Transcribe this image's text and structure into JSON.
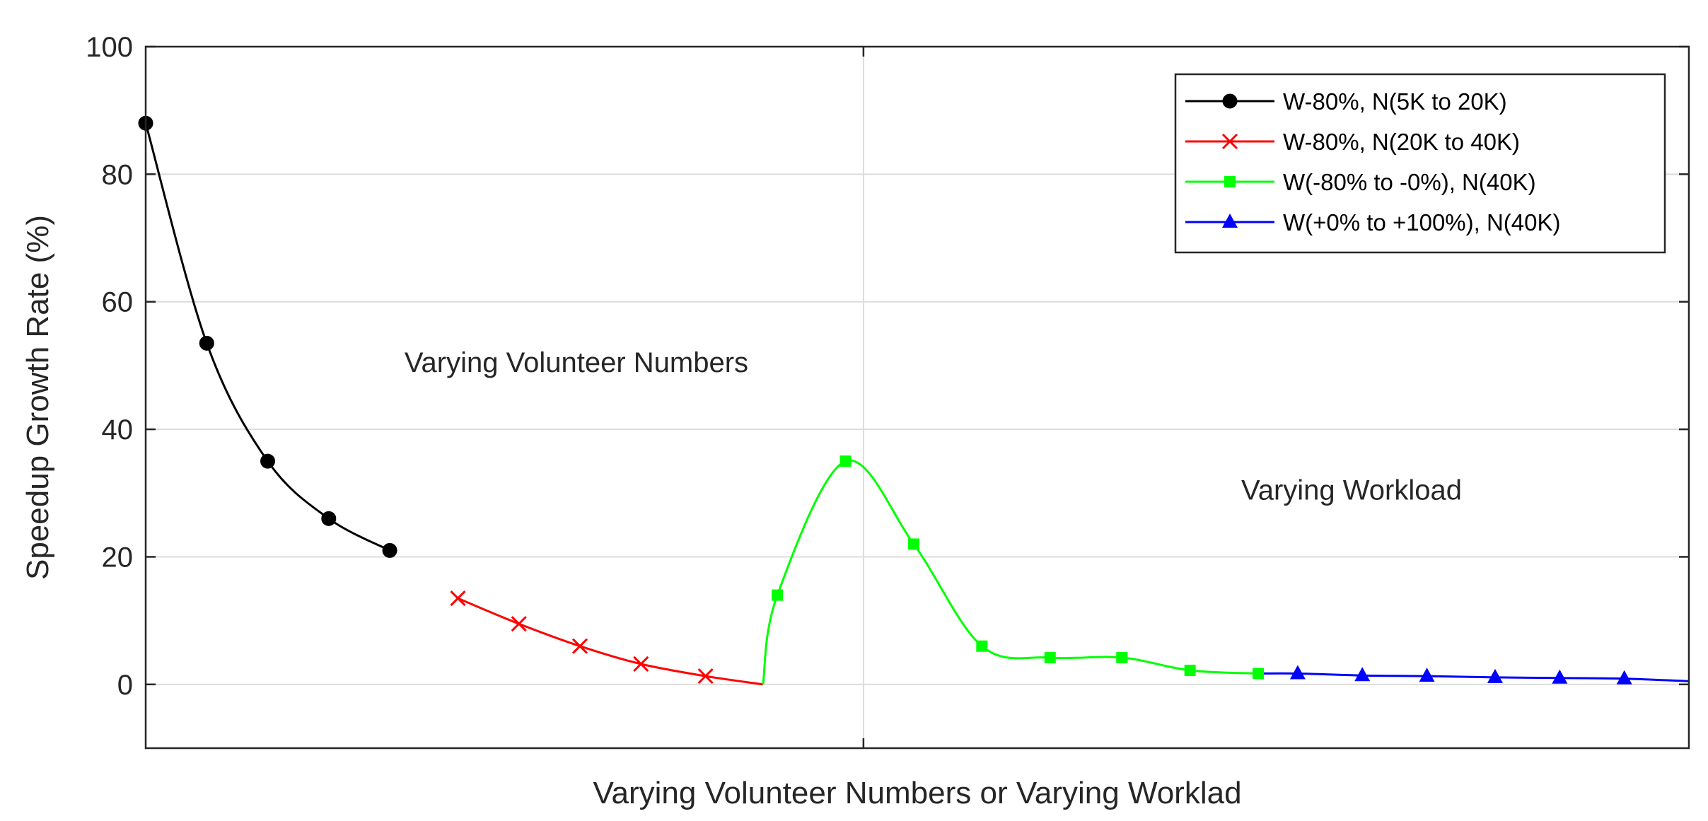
{
  "chart_data": {
    "type": "line",
    "title": "",
    "xlabel": "Varying Volunteer Numbers or Varying Worklad",
    "ylabel": "Speedup Growth Rate (%)",
    "xlim": [
      0,
      21.5
    ],
    "ylim": [
      -10,
      100
    ],
    "yticks": [
      0,
      20,
      40,
      60,
      80,
      100
    ],
    "xticks": [
      10
    ],
    "grid": true,
    "legend_position": "top-right",
    "annotations": [
      {
        "text": "Varying Volunteer Numbers",
        "x": 6.0,
        "y": 49
      },
      {
        "text": "Varying Workload",
        "x": 16.8,
        "y": 29
      }
    ],
    "series": [
      {
        "name": "W-80%, N(5K to 20K)",
        "color": "#000000",
        "marker": "circle",
        "x": [
          0,
          0.85,
          1.7,
          2.55,
          3.4
        ],
        "y": [
          88,
          53.5,
          35,
          26,
          21
        ]
      },
      {
        "name": "W-80%, N(20K to 40K)",
        "color": "#ff0000",
        "marker": "x",
        "x": [
          4.35,
          5.2,
          6.05,
          6.9,
          7.8,
          8.6
        ],
        "y": [
          13.5,
          9.5,
          6,
          3.2,
          1.3,
          0
        ],
        "marker_points": 5
      },
      {
        "name": "W(-80% to -0%), N(40K)",
        "color": "#00ff00",
        "marker": "square",
        "x": [
          8.6,
          8.8,
          9.75,
          10.7,
          11.65,
          12.6,
          13.6,
          14.55,
          15.5
        ],
        "y": [
          0,
          14,
          35,
          22,
          6,
          4.2,
          4.2,
          2.2,
          1.7
        ],
        "marker_start": 1
      },
      {
        "name": "W(+0% to +100%), N(40K)",
        "color": "#0000ff",
        "marker": "triangle",
        "x": [
          15.5,
          16.05,
          16.95,
          17.85,
          18.8,
          19.7,
          20.6,
          21.5
        ],
        "y": [
          1.7,
          1.7,
          1.4,
          1.3,
          1.1,
          1.0,
          0.9,
          0.5
        ],
        "marker_start": 1,
        "marker_end_offset": 1
      }
    ]
  }
}
